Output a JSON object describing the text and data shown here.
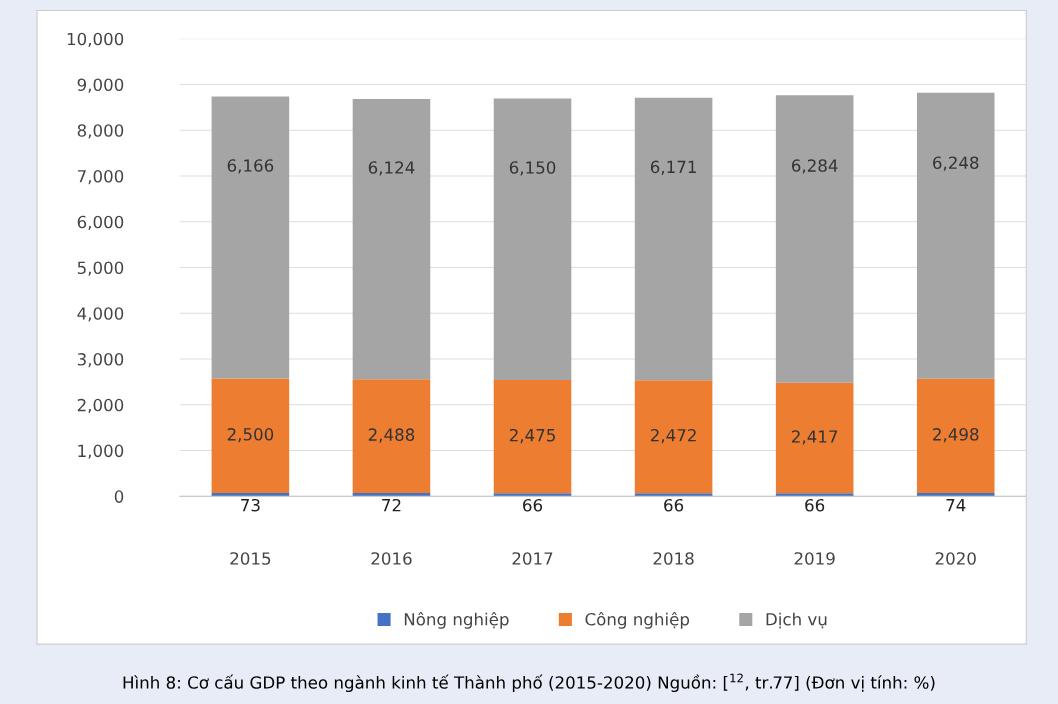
{
  "chart_data": {
    "type": "bar",
    "stacked": true,
    "categories": [
      "2015",
      "2016",
      "2017",
      "2018",
      "2019",
      "2020"
    ],
    "series": [
      {
        "name": "Nông nghiệp",
        "color": "#4472c4",
        "values": [
          73,
          72,
          66,
          66,
          66,
          74
        ],
        "value_labels": [
          "73",
          "72",
          "66",
          "66",
          "66",
          "74"
        ]
      },
      {
        "name": "Công nghiệp",
        "color": "#ed7d31",
        "values": [
          2500,
          2488,
          2475,
          2472,
          2417,
          2498
        ],
        "value_labels": [
          "2,500",
          "2,488",
          "2,475",
          "2,472",
          "2,417",
          "2,498"
        ]
      },
      {
        "name": "Dịch vụ",
        "color": "#a5a5a5",
        "values": [
          6166,
          6124,
          6150,
          6171,
          6284,
          6248
        ],
        "value_labels": [
          "6,166",
          "6,124",
          "6,150",
          "6,171",
          "6,284",
          "6,248"
        ]
      }
    ],
    "ylim": [
      0,
      10000
    ],
    "yticks": [
      {
        "value": 0,
        "label": "0"
      },
      {
        "value": 1000,
        "label": "1,000"
      },
      {
        "value": 2000,
        "label": "2,000"
      },
      {
        "value": 3000,
        "label": "3,000"
      },
      {
        "value": 4000,
        "label": "4,000"
      },
      {
        "value": 5000,
        "label": "5,000"
      },
      {
        "value": 6000,
        "label": "6,000"
      },
      {
        "value": 7000,
        "label": "7,000"
      },
      {
        "value": 8000,
        "label": "8,000"
      },
      {
        "value": 9000,
        "label": "9,000"
      },
      {
        "value": 10000,
        "label": "10,000"
      }
    ],
    "grid": "y",
    "legend": "bottom",
    "annotations": [
      "Hình 8: Cơ cấu GDP theo ngành kinh tế Thành phố (2015-2020) Nguồn: [$^{12}$, tr.77] (Đơn vị tính: %)"
    ]
  }
}
